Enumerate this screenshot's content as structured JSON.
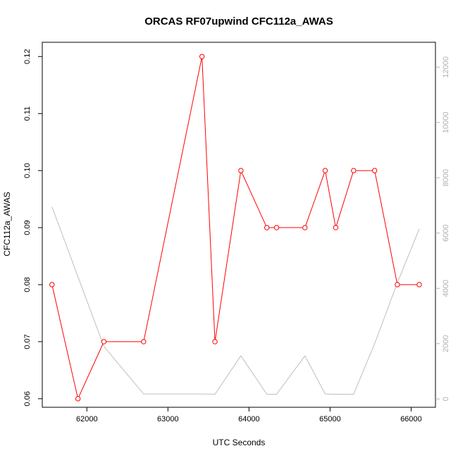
{
  "chart_data": {
    "type": "line",
    "title": "ORCAS RF07upwind CFC112a_AWAS",
    "xlabel": "UTC Seconds",
    "ylabel": "CFC112a_AWAS",
    "xlim": [
      61450,
      66300
    ],
    "ylim": [
      0.0585,
      0.1225
    ],
    "y2lim": [
      -300,
      12900
    ],
    "x_ticks": [
      62000,
      63000,
      64000,
      65000,
      66000
    ],
    "y_ticks": [
      0.06,
      0.07,
      0.08,
      0.09,
      0.1,
      0.11,
      0.12
    ],
    "y2_ticks": [
      0,
      2000,
      4000,
      6000,
      8000,
      10000,
      12000
    ],
    "grid": false,
    "colors": {
      "primary": "#ff0000",
      "secondary": "#bebebe",
      "axis": "#000000",
      "right_axis": "#b0b0b0"
    },
    "series": [
      {
        "axis": "left",
        "style": "line+points",
        "x": [
          61570,
          61890,
          62210,
          62700,
          63420,
          63580,
          63900,
          64220,
          64340,
          64690,
          64940,
          65070,
          65290,
          65550,
          65830,
          66100
        ],
        "y": [
          0.08,
          0.06,
          0.07,
          0.07,
          0.12,
          0.07,
          0.1,
          0.09,
          0.09,
          0.09,
          0.1,
          0.09,
          0.1,
          0.1,
          0.08,
          0.08
        ]
      },
      {
        "axis": "right",
        "style": "line",
        "x": [
          61570,
          62210,
          62700,
          63420,
          63580,
          63900,
          64220,
          64340,
          64690,
          64940,
          65070,
          65290,
          65550,
          65830,
          66100
        ],
        "y": [
          6950,
          1900,
          180,
          180,
          170,
          1560,
          170,
          170,
          1560,
          180,
          170,
          170,
          2000,
          4200,
          6150
        ]
      }
    ]
  }
}
